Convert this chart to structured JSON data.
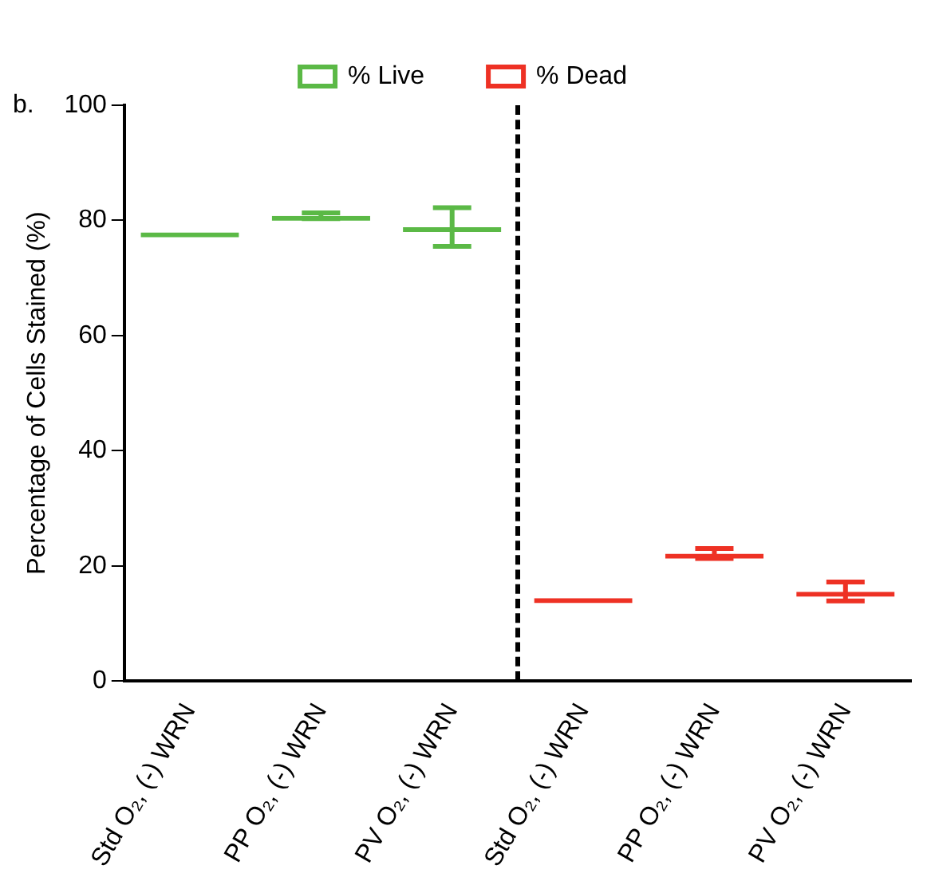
{
  "chart_data": {
    "type": "bar",
    "title": "b.",
    "ylabel": "Percentage of Cells Stained (%)",
    "categories": [
      "Std O₂, (-) WRN",
      "PP O₂, (-) WRN",
      "PV O₂, (-) WRN",
      "Std O₂, (-) WRN",
      "PP O₂, (-) WRN",
      "PV O₂, (-) WRN"
    ],
    "series": [
      {
        "name": "% Live",
        "color": "#5bb946",
        "values": [
          77.9,
          80.8,
          78.8,
          null,
          null,
          null
        ],
        "errors": [
          null,
          [
            80.3,
            81.3
          ],
          [
            75.5,
            82.2
          ],
          null,
          null,
          null
        ]
      },
      {
        "name": "% Dead",
        "color": "#ee3124",
        "values": [
          null,
          null,
          null,
          14.4,
          22.1,
          15.5
        ],
        "errors": [
          null,
          null,
          null,
          null,
          [
            21.3,
            23.0
          ],
          [
            13.9,
            17.2
          ]
        ]
      }
    ],
    "ylim": [
      0,
      100
    ],
    "yticks": [
      0,
      20,
      40,
      60,
      80,
      100
    ],
    "grid": false,
    "legend": "top"
  }
}
